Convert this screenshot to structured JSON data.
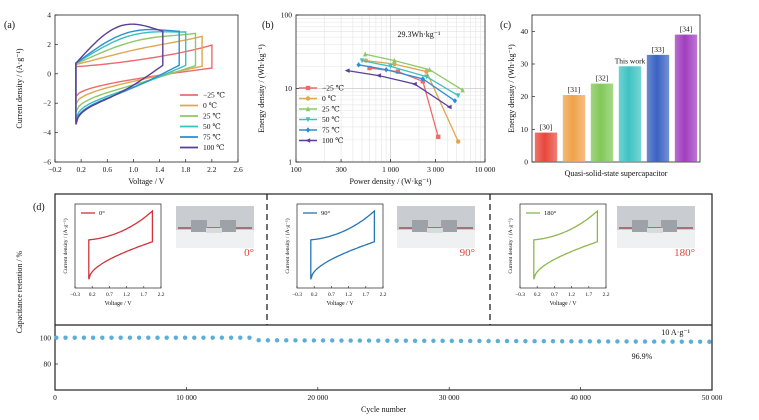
{
  "chart_data": [
    {
      "type": "line",
      "panel_label": "(a)",
      "xlabel": "Voltage / V",
      "ylabel": "Current density / (A·g⁻¹)",
      "xlim": [
        -0.2,
        2.6
      ],
      "ylim": [
        -6,
        4
      ],
      "xticks": [
        -0.2,
        0.2,
        0.6,
        1.0,
        1.4,
        1.8,
        2.2,
        2.6
      ],
      "xtick_labels": [
        "−0.2",
        "0.2",
        "0.6",
        "1.0",
        "1.4",
        "1.8",
        "2.2",
        "2.6"
      ],
      "yticks": [
        -6,
        -4,
        -2,
        0,
        2,
        4
      ],
      "ytick_labels": [
        "−6",
        "−4",
        "−2",
        "0",
        "2",
        "4"
      ],
      "legend_position": "right",
      "series": [
        {
          "name": "−25 ℃",
          "color": "#ee6b6b",
          "vmax": 2.2,
          "ipos": 1.95,
          "ineg": -1.55,
          "bulge": 0.1
        },
        {
          "name": "0 ℃",
          "color": "#e0a650",
          "vmax": 2.05,
          "ipos": 2.55,
          "ineg": -2.05,
          "bulge": 0.25
        },
        {
          "name": "25 ℃",
          "color": "#8dc86a",
          "vmax": 1.95,
          "ipos": 2.75,
          "ineg": -2.6,
          "bulge": 0.4
        },
        {
          "name": "50 ℃",
          "color": "#3cc0bd",
          "vmax": 1.8,
          "ipos": 2.85,
          "ineg": -3.05,
          "bulge": 0.5
        },
        {
          "name": "75 ℃",
          "color": "#2b8fd0",
          "vmax": 1.7,
          "ipos": 2.9,
          "ineg": -3.3,
          "bulge": 0.55
        },
        {
          "name": "100 ℃",
          "color": "#5b3e98",
          "vmax": 1.45,
          "ipos": 2.9,
          "ineg": -3.45,
          "bulge": 0.7
        }
      ]
    },
    {
      "type": "line",
      "panel_label": "(b)",
      "xlabel": "Power density / (W·kg⁻¹)",
      "ylabel": "Energy density / (Wh·kg⁻¹)",
      "xscale": "log",
      "yscale": "log",
      "xlim": [
        100,
        10000
      ],
      "ylim": [
        1,
        100
      ],
      "xticks": [
        100,
        300,
        1000,
        3000,
        10000
      ],
      "xtick_labels": [
        "100",
        "300",
        "1 000",
        "3 000",
        "10 000"
      ],
      "yticks": [
        1,
        10,
        100
      ],
      "ytick_labels": [
        "1",
        "10",
        "100"
      ],
      "annotation": "29.3Wh·kg⁻¹",
      "legend_position": "lower-left",
      "series": [
        {
          "name": "−25 ℃",
          "color": "#ee6b6b",
          "marker": "square",
          "x": [
            600,
            1200,
            2200,
            3200
          ],
          "y": [
            19,
            17,
            12.5,
            2.2
          ]
        },
        {
          "name": "0 ℃",
          "color": "#e0a650",
          "marker": "circle",
          "x": [
            550,
            1100,
            2400,
            5200
          ],
          "y": [
            24,
            21.5,
            17,
            1.9
          ]
        },
        {
          "name": "25 ℃",
          "color": "#8dc86a",
          "marker": "triangle",
          "x": [
            540,
            1100,
            2600,
            5800
          ],
          "y": [
            29.3,
            24,
            18,
            9.5
          ]
        },
        {
          "name": "50 ℃",
          "color": "#3cc0bd",
          "marker": "triangle-down",
          "x": [
            500,
            1000,
            2400,
            5200
          ],
          "y": [
            24,
            20,
            14.5,
            8
          ]
        },
        {
          "name": "75 ℃",
          "color": "#2b8fd0",
          "marker": "diamond",
          "x": [
            460,
            900,
            2200,
            4800
          ],
          "y": [
            21,
            18,
            13.5,
            6.8
          ]
        },
        {
          "name": "100 ℃",
          "color": "#5b3e98",
          "marker": "triangle-left",
          "x": [
            350,
            750,
            1800,
            4200
          ],
          "y": [
            17.5,
            15,
            11.5,
            5.6
          ]
        }
      ]
    },
    {
      "type": "bar",
      "panel_label": "(c)",
      "xlabel": "Quasi-solid-state supercapacitor",
      "ylabel": "Energy density / (Wh·kg⁻¹)",
      "ylim": [
        0,
        45
      ],
      "yticks": [
        0,
        10,
        20,
        30,
        40
      ],
      "categories": [
        "[30]",
        "[31]",
        "[32]",
        "This work",
        "[33]",
        "[34]"
      ],
      "values": [
        9,
        20.5,
        24,
        29.3,
        32.8,
        39
      ],
      "colors": [
        "#e8473b",
        "#f0a24a",
        "#82c858",
        "#3ec3c2",
        "#3a62c2",
        "#a13ebe"
      ]
    },
    {
      "type": "scatter",
      "panel_label": "(d)",
      "xlabel": "Cycle number",
      "ylabel": "Capacitance retention / %",
      "xlim": [
        0,
        50000
      ],
      "ylim": [
        60,
        110
      ],
      "xticks": [
        0,
        10000,
        20000,
        30000,
        40000,
        50000
      ],
      "xtick_labels": [
        "0",
        "10 000",
        "20 000",
        "30 000",
        "40 000",
        "50 000"
      ],
      "yticks": [
        80,
        100
      ],
      "annotation_rate": "10 A·g⁻¹",
      "annotation_retention": "96.9%",
      "color": "#5aaed8",
      "points_start": 100,
      "points_end": 50000,
      "points_step": 700,
      "insets": [
        {
          "legend": "0°",
          "angle_label": "0°",
          "color": "#d0323a",
          "xlabel": "Voltage / V",
          "ylabel": "Current density / (A·g⁻¹)",
          "xticks": [
            -0.3,
            0.2,
            0.7,
            1.2,
            1.7,
            2.2
          ],
          "xtick_labels": [
            "−0.3",
            "0.2",
            "0.7",
            "1.2",
            "1.7",
            "2.2"
          ]
        },
        {
          "legend": "90°",
          "angle_label": "90°",
          "color": "#2574b8",
          "xlabel": "Voltage / V",
          "ylabel": "Current density / (A·g⁻¹)",
          "xticks": [
            -0.3,
            0.2,
            0.7,
            1.2,
            1.7,
            2.2
          ],
          "xtick_labels": [
            "−0.3",
            "0.2",
            "0.7",
            "1.2",
            "1.7",
            "2.2"
          ]
        },
        {
          "legend": "180°",
          "angle_label": "180°",
          "color": "#8cb84a",
          "xlabel": "Voltage / V",
          "ylabel": "Current density / (A·g⁻¹)",
          "xticks": [
            -0.3,
            0.2,
            0.7,
            1.2,
            1.7,
            2.2
          ],
          "xtick_labels": [
            "−0.3",
            "0.2",
            "0.7",
            "1.2",
            "1.7",
            "2.2"
          ]
        }
      ]
    }
  ]
}
